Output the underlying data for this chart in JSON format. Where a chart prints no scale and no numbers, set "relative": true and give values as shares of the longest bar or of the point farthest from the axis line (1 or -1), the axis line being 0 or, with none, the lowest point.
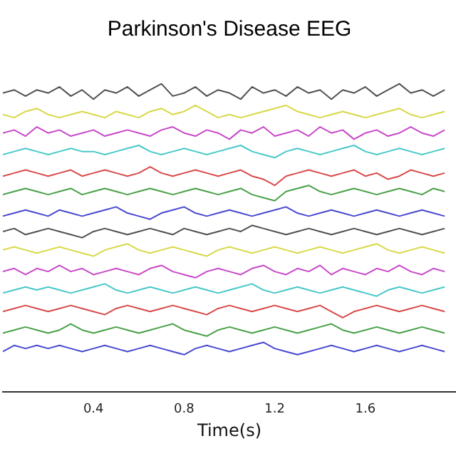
{
  "chart_data": {
    "type": "line",
    "title": "Parkinson's Disease EEG",
    "xlabel": "Time(s)",
    "relative": true,
    "grid": false,
    "legend": false,
    "marker": "none",
    "line_style": "solid",
    "xlim": [
      0,
      2
    ],
    "xticks": [
      0.4,
      0.8,
      1.2,
      1.6
    ],
    "x": [
      0,
      0.05,
      0.1,
      0.15,
      0.2,
      0.25,
      0.3,
      0.35,
      0.4,
      0.45,
      0.5,
      0.55,
      0.6,
      0.65,
      0.7,
      0.75,
      0.8,
      0.85,
      0.9,
      0.95,
      1,
      1.05,
      1.1,
      1.15,
      1.2,
      1.25,
      1.3,
      1.35,
      1.4,
      1.45,
      1.5,
      1.55,
      1.6,
      1.65,
      1.7,
      1.75,
      1.8,
      1.85,
      1.9,
      1.95
    ],
    "series": [
      {
        "color": "#505050",
        "values": [
          0.97,
          0.98,
          0.96,
          0.98,
          0.97,
          0.99,
          0.96,
          0.98,
          0.95,
          0.98,
          0.97,
          0.99,
          0.96,
          0.98,
          1.0,
          0.96,
          0.97,
          0.99,
          0.96,
          0.98,
          0.97,
          0.95,
          0.99,
          0.97,
          0.98,
          0.96,
          0.99,
          0.97,
          0.98,
          0.95,
          0.98,
          0.97,
          0.99,
          0.96,
          0.98,
          1.0,
          0.97,
          0.98,
          0.96,
          0.98
        ]
      },
      {
        "color": "#d8d848",
        "values": [
          0.9,
          0.89,
          0.91,
          0.92,
          0.9,
          0.89,
          0.9,
          0.91,
          0.9,
          0.89,
          0.91,
          0.9,
          0.89,
          0.91,
          0.92,
          0.9,
          0.91,
          0.93,
          0.91,
          0.89,
          0.9,
          0.89,
          0.9,
          0.91,
          0.92,
          0.93,
          0.91,
          0.9,
          0.89,
          0.9,
          0.91,
          0.9,
          0.89,
          0.9,
          0.91,
          0.92,
          0.9,
          0.89,
          0.9,
          0.91
        ]
      },
      {
        "color": "#c848c8",
        "values": [
          0.84,
          0.85,
          0.83,
          0.86,
          0.84,
          0.85,
          0.83,
          0.84,
          0.85,
          0.83,
          0.84,
          0.85,
          0.84,
          0.83,
          0.85,
          0.86,
          0.84,
          0.83,
          0.85,
          0.84,
          0.82,
          0.85,
          0.84,
          0.86,
          0.83,
          0.84,
          0.85,
          0.83,
          0.86,
          0.84,
          0.85,
          0.82,
          0.84,
          0.85,
          0.83,
          0.84,
          0.86,
          0.84,
          0.83,
          0.85
        ]
      },
      {
        "color": "#48c8c8",
        "values": [
          0.77,
          0.78,
          0.79,
          0.78,
          0.77,
          0.78,
          0.79,
          0.78,
          0.78,
          0.77,
          0.78,
          0.79,
          0.8,
          0.78,
          0.77,
          0.78,
          0.79,
          0.78,
          0.77,
          0.78,
          0.79,
          0.8,
          0.78,
          0.77,
          0.76,
          0.78,
          0.79,
          0.78,
          0.77,
          0.78,
          0.79,
          0.8,
          0.78,
          0.77,
          0.78,
          0.79,
          0.78,
          0.77,
          0.78,
          0.79
        ]
      },
      {
        "color": "#d84848",
        "values": [
          0.7,
          0.71,
          0.72,
          0.71,
          0.7,
          0.71,
          0.72,
          0.7,
          0.71,
          0.72,
          0.71,
          0.7,
          0.71,
          0.73,
          0.71,
          0.7,
          0.71,
          0.72,
          0.71,
          0.7,
          0.71,
          0.72,
          0.7,
          0.69,
          0.67,
          0.7,
          0.71,
          0.72,
          0.71,
          0.7,
          0.71,
          0.72,
          0.7,
          0.71,
          0.69,
          0.7,
          0.72,
          0.71,
          0.7,
          0.71
        ]
      },
      {
        "color": "#48a048",
        "values": [
          0.64,
          0.65,
          0.66,
          0.65,
          0.64,
          0.65,
          0.66,
          0.64,
          0.65,
          0.66,
          0.65,
          0.64,
          0.65,
          0.66,
          0.65,
          0.64,
          0.65,
          0.66,
          0.65,
          0.64,
          0.65,
          0.66,
          0.64,
          0.63,
          0.62,
          0.65,
          0.66,
          0.67,
          0.65,
          0.64,
          0.65,
          0.66,
          0.65,
          0.64,
          0.65,
          0.66,
          0.65,
          0.64,
          0.66,
          0.65
        ]
      },
      {
        "color": "#4848d0",
        "values": [
          0.57,
          0.58,
          0.59,
          0.58,
          0.57,
          0.59,
          0.58,
          0.57,
          0.58,
          0.59,
          0.6,
          0.58,
          0.57,
          0.56,
          0.58,
          0.59,
          0.6,
          0.58,
          0.57,
          0.58,
          0.59,
          0.58,
          0.57,
          0.58,
          0.59,
          0.6,
          0.58,
          0.57,
          0.58,
          0.59,
          0.58,
          0.57,
          0.58,
          0.59,
          0.58,
          0.57,
          0.58,
          0.59,
          0.58,
          0.57
        ]
      },
      {
        "color": "#505050",
        "values": [
          0.52,
          0.53,
          0.51,
          0.52,
          0.53,
          0.52,
          0.51,
          0.5,
          0.52,
          0.53,
          0.52,
          0.51,
          0.52,
          0.53,
          0.52,
          0.51,
          0.53,
          0.52,
          0.51,
          0.52,
          0.53,
          0.52,
          0.54,
          0.53,
          0.52,
          0.51,
          0.52,
          0.53,
          0.52,
          0.51,
          0.52,
          0.53,
          0.52,
          0.51,
          0.52,
          0.53,
          0.52,
          0.51,
          0.52,
          0.53
        ]
      },
      {
        "color": "#d8d848",
        "values": [
          0.46,
          0.47,
          0.46,
          0.45,
          0.46,
          0.47,
          0.46,
          0.45,
          0.44,
          0.46,
          0.47,
          0.48,
          0.46,
          0.45,
          0.46,
          0.47,
          0.46,
          0.45,
          0.44,
          0.46,
          0.47,
          0.46,
          0.45,
          0.46,
          0.47,
          0.46,
          0.45,
          0.46,
          0.47,
          0.46,
          0.45,
          0.46,
          0.47,
          0.48,
          0.46,
          0.45,
          0.46,
          0.47,
          0.46,
          0.45
        ]
      },
      {
        "color": "#c848c8",
        "values": [
          0.39,
          0.4,
          0.38,
          0.4,
          0.39,
          0.41,
          0.39,
          0.4,
          0.38,
          0.39,
          0.4,
          0.39,
          0.38,
          0.4,
          0.41,
          0.39,
          0.38,
          0.37,
          0.39,
          0.4,
          0.39,
          0.38,
          0.4,
          0.41,
          0.39,
          0.38,
          0.4,
          0.39,
          0.41,
          0.38,
          0.4,
          0.39,
          0.38,
          0.4,
          0.39,
          0.41,
          0.39,
          0.38,
          0.4,
          0.39
        ]
      },
      {
        "color": "#48c8c8",
        "values": [
          0.32,
          0.33,
          0.34,
          0.33,
          0.34,
          0.33,
          0.32,
          0.33,
          0.34,
          0.35,
          0.33,
          0.32,
          0.33,
          0.34,
          0.33,
          0.32,
          0.33,
          0.34,
          0.33,
          0.32,
          0.33,
          0.34,
          0.35,
          0.33,
          0.32,
          0.33,
          0.34,
          0.33,
          0.32,
          0.33,
          0.34,
          0.33,
          0.32,
          0.31,
          0.33,
          0.34,
          0.33,
          0.32,
          0.33,
          0.34
        ]
      },
      {
        "color": "#d84848",
        "values": [
          0.26,
          0.27,
          0.28,
          0.27,
          0.26,
          0.27,
          0.28,
          0.27,
          0.26,
          0.25,
          0.27,
          0.28,
          0.27,
          0.26,
          0.27,
          0.28,
          0.27,
          0.26,
          0.25,
          0.27,
          0.28,
          0.27,
          0.26,
          0.27,
          0.28,
          0.27,
          0.26,
          0.27,
          0.28,
          0.26,
          0.24,
          0.26,
          0.27,
          0.28,
          0.27,
          0.26,
          0.27,
          0.28,
          0.27,
          0.26
        ]
      },
      {
        "color": "#48a048",
        "values": [
          0.19,
          0.2,
          0.21,
          0.2,
          0.19,
          0.2,
          0.22,
          0.2,
          0.19,
          0.2,
          0.21,
          0.2,
          0.19,
          0.2,
          0.21,
          0.22,
          0.2,
          0.19,
          0.18,
          0.2,
          0.21,
          0.2,
          0.19,
          0.2,
          0.21,
          0.2,
          0.19,
          0.2,
          0.21,
          0.22,
          0.2,
          0.19,
          0.2,
          0.21,
          0.2,
          0.19,
          0.2,
          0.21,
          0.2,
          0.19
        ]
      },
      {
        "color": "#4848d0",
        "values": [
          0.13,
          0.15,
          0.14,
          0.15,
          0.14,
          0.15,
          0.14,
          0.13,
          0.14,
          0.15,
          0.14,
          0.13,
          0.14,
          0.15,
          0.14,
          0.13,
          0.12,
          0.14,
          0.15,
          0.14,
          0.13,
          0.14,
          0.15,
          0.16,
          0.14,
          0.13,
          0.12,
          0.13,
          0.14,
          0.15,
          0.14,
          0.13,
          0.14,
          0.15,
          0.14,
          0.13,
          0.14,
          0.15,
          0.14,
          0.13
        ]
      }
    ]
  }
}
